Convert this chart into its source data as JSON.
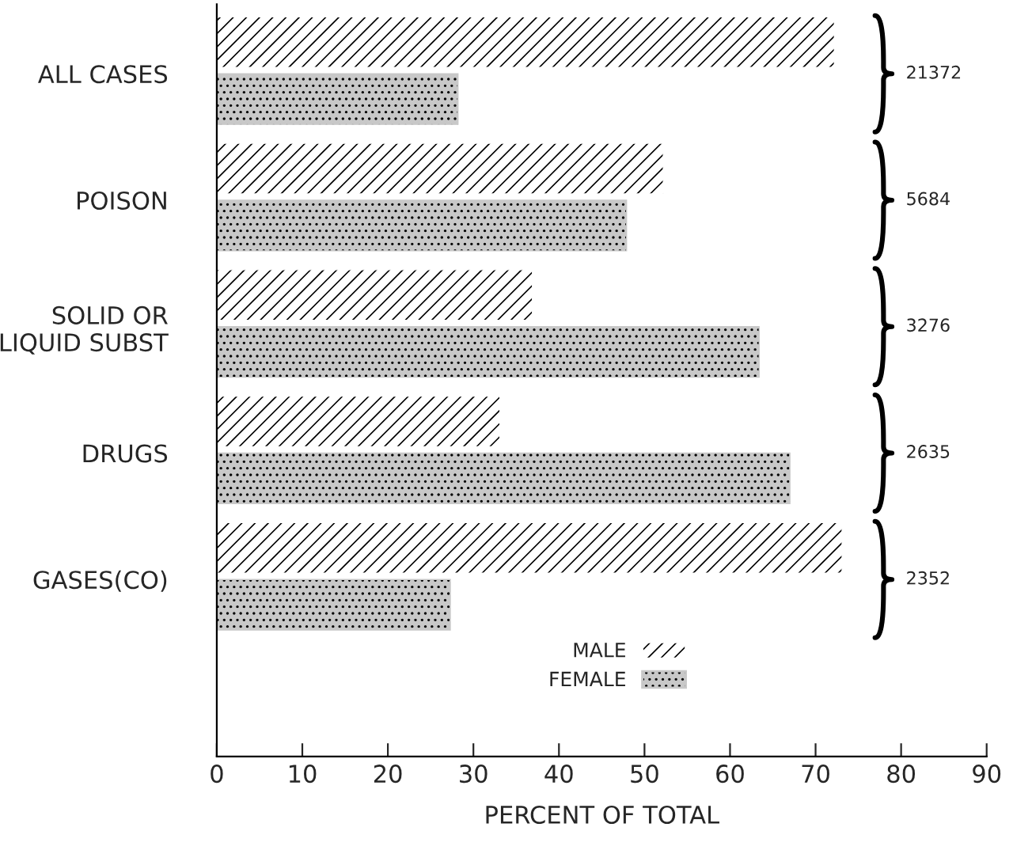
{
  "chart_data": {
    "type": "bar",
    "orientation": "horizontal",
    "xlabel": "PERCENT OF TOTAL",
    "categories": [
      "ALL CASES",
      "POISON",
      "SOLID OR\nLIQUID SUBST",
      "DRUGS",
      "GASES(CO)"
    ],
    "series": [
      {
        "name": "MALE",
        "color": "#ffffff",
        "values": [
          72.2,
          52.2,
          36.9,
          33.1,
          73.1
        ]
      },
      {
        "name": "FEMALE",
        "color": "#c8c8c8",
        "values": [
          28.2,
          47.9,
          63.4,
          67,
          27.3
        ]
      }
    ],
    "xlim": [
      0,
      90
    ],
    "xticks": [
      0,
      10,
      20,
      30,
      40,
      50,
      60,
      70,
      80,
      90
    ],
    "annotations": [
      "21372",
      "5684",
      "3276",
      "2635",
      "2352"
    ],
    "legend": "bottom",
    "grid": false
  }
}
